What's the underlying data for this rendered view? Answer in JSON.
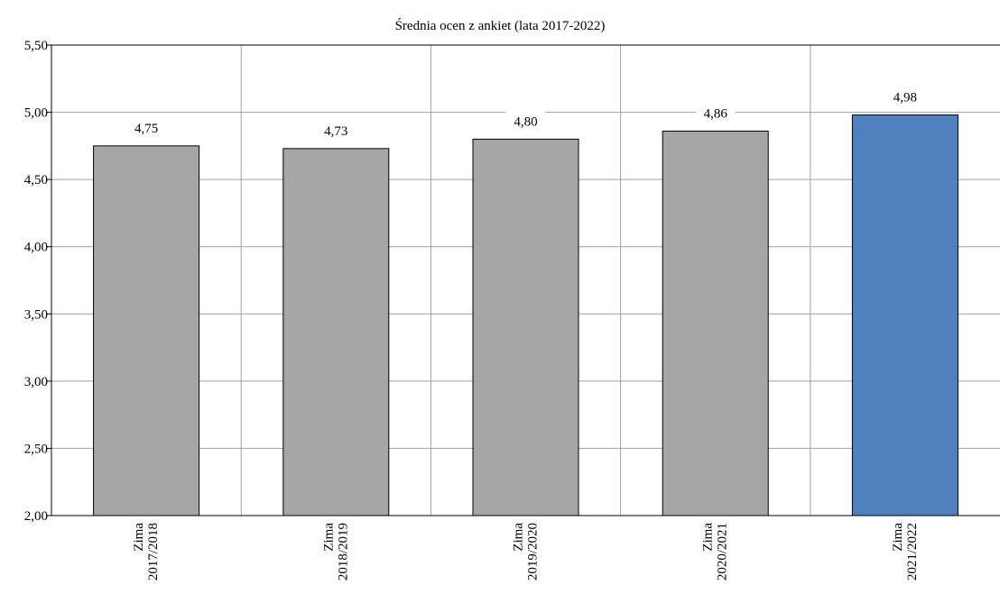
{
  "chart_data": {
    "type": "bar",
    "title": "Średnia ocen z ankiet (lata 2017-2022)",
    "categories": [
      [
        "Zima",
        "2017/2018"
      ],
      [
        "Zima",
        "2018/2019"
      ],
      [
        "Zima",
        "2019/2020"
      ],
      [
        "Zima",
        "2020/2021"
      ],
      [
        "Zima",
        "2021/2022"
      ]
    ],
    "values": [
      4.75,
      4.73,
      4.8,
      4.86,
      4.98
    ],
    "value_labels": [
      "4,75",
      "4,73",
      "4,80",
      "4,86",
      "4,98"
    ],
    "ylim": [
      2.0,
      5.5
    ],
    "yticks": [
      2.0,
      2.5,
      3.0,
      3.5,
      4.0,
      4.5,
      5.0,
      5.5
    ],
    "ytick_labels": [
      "2,00",
      "2,50",
      "3,00",
      "3,50",
      "4,00",
      "4,50",
      "5,00",
      "5,50"
    ],
    "xlabel": "",
    "ylabel": "",
    "grid": true,
    "colors": {
      "default_bar": "#a6a6a6",
      "highlight_bar": "#4f81bd",
      "highlight_index": 4,
      "grid": "#a0a0a0",
      "axis": "#000000"
    }
  }
}
